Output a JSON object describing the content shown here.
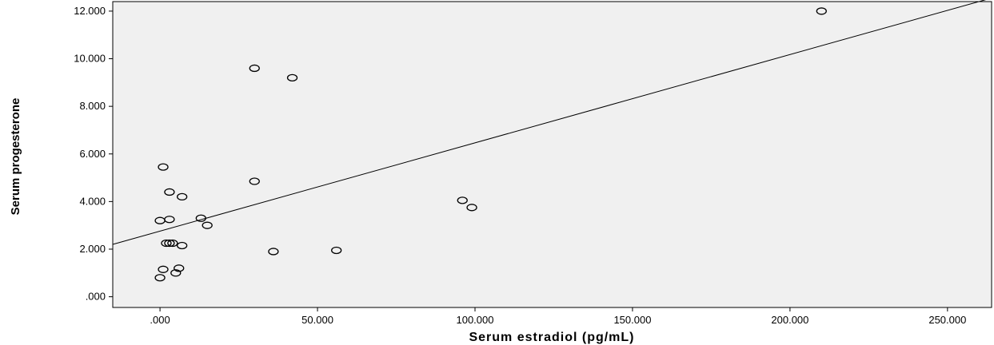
{
  "chart_data": {
    "type": "scatter",
    "title": "",
    "xlabel": "Serum estradiol (pg/mL)",
    "ylabel": "Serum progesterone",
    "xlim": [
      -15,
      264
    ],
    "ylim": [
      -0.45,
      12.4
    ],
    "xticks": [
      0,
      50,
      100,
      150,
      200,
      250
    ],
    "xtick_labels": [
      ".000",
      "50.000",
      "100.000",
      "150.000",
      "200.000",
      "250.000"
    ],
    "yticks": [
      0,
      2,
      4,
      6,
      8,
      10,
      12
    ],
    "ytick_labels": [
      ".000",
      "2.000",
      "4.000",
      "6.000",
      "8.000",
      "10.000",
      "12.000"
    ],
    "grid": false,
    "plot_background": "#f0f0f0",
    "marker": "open-circle",
    "fit_line": {
      "type": "linear",
      "y_at_xmin": 2.2,
      "y_at_xmax": 12.55
    },
    "points": [
      {
        "x": 210,
        "y": 12.0
      },
      {
        "x": 30,
        "y": 9.6
      },
      {
        "x": 42,
        "y": 9.2
      },
      {
        "x": 1,
        "y": 5.45
      },
      {
        "x": 30,
        "y": 4.85
      },
      {
        "x": 3,
        "y": 4.4
      },
      {
        "x": 7,
        "y": 4.2
      },
      {
        "x": 96,
        "y": 4.05
      },
      {
        "x": 99,
        "y": 3.75
      },
      {
        "x": 0,
        "y": 3.2
      },
      {
        "x": 3,
        "y": 3.25
      },
      {
        "x": 13,
        "y": 3.3
      },
      {
        "x": 15,
        "y": 3.0
      },
      {
        "x": 2,
        "y": 2.25
      },
      {
        "x": 3,
        "y": 2.25
      },
      {
        "x": 4,
        "y": 2.25
      },
      {
        "x": 7,
        "y": 2.15
      },
      {
        "x": 36,
        "y": 1.9
      },
      {
        "x": 56,
        "y": 1.95
      },
      {
        "x": 1,
        "y": 1.15
      },
      {
        "x": 6,
        "y": 1.2
      },
      {
        "x": 5,
        "y": 1.0
      },
      {
        "x": 0,
        "y": 0.8
      }
    ]
  }
}
